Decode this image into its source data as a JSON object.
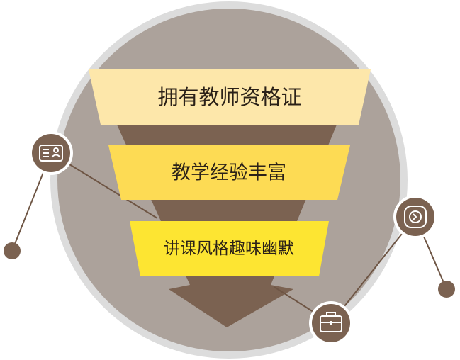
{
  "funnel": {
    "tiers": [
      {
        "label": "拥有教师资格证",
        "color": "#fde7aa"
      },
      {
        "label": "教学经验丰富",
        "color": "#fddb54"
      },
      {
        "label": "讲课风格趣味幽默",
        "color": "#fde532"
      }
    ]
  },
  "icons": [
    {
      "name": "id-card-icon"
    },
    {
      "name": "clock-badge-icon"
    },
    {
      "name": "briefcase-icon"
    }
  ],
  "colors": {
    "outer_ring": "#dcdcdc",
    "circle_fill": "#aca29b",
    "funnel_brown": "#7b6251",
    "connector": "#6e5544",
    "icon_badge": "#7b6251"
  }
}
